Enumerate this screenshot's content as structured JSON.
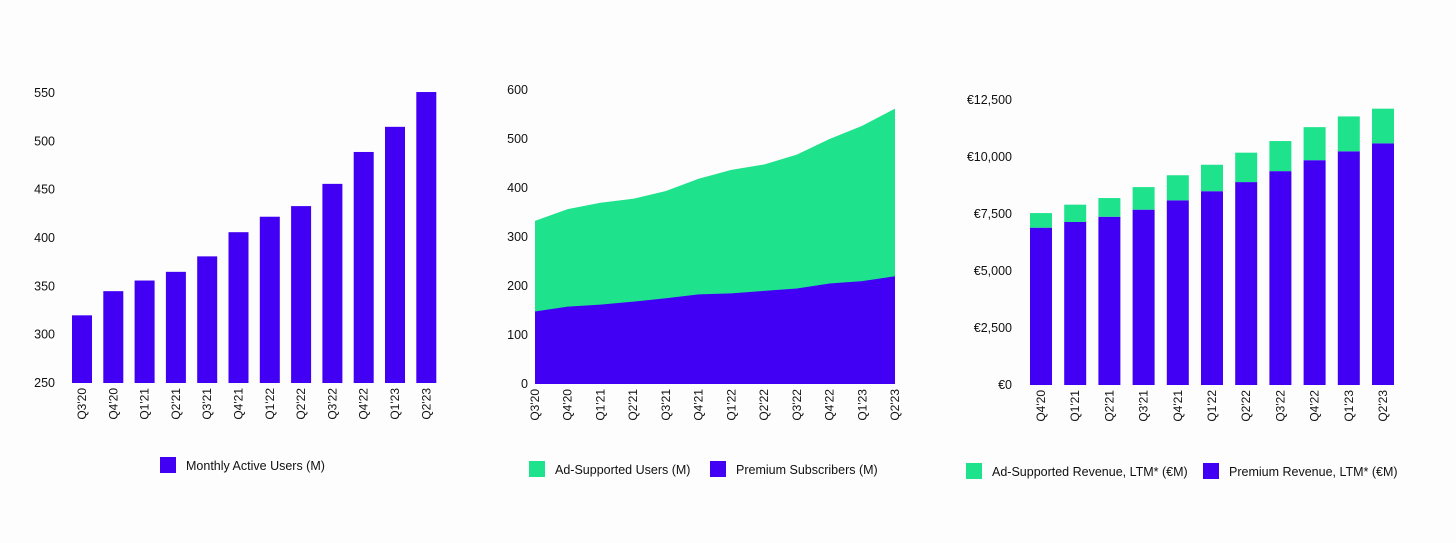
{
  "colors": {
    "purple": "#4100f4",
    "green": "#1ee38c",
    "background": "#fdfdfd",
    "text": "#111111"
  },
  "chart_data": [
    {
      "type": "bar",
      "categories": [
        "Q3'20",
        "Q4'20",
        "Q1'21",
        "Q2'21",
        "Q3'21",
        "Q4'21",
        "Q1'22",
        "Q2'22",
        "Q3'22",
        "Q4'22",
        "Q1'23",
        "Q2'23"
      ],
      "series": [
        {
          "name": "Monthly Active Users (M)",
          "color": "#4100f4",
          "values": [
            320,
            345,
            356,
            365,
            381,
            406,
            422,
            433,
            456,
            489,
            515,
            551
          ]
        }
      ],
      "yticks": [
        "250",
        "300",
        "350",
        "400",
        "450",
        "500",
        "550"
      ],
      "ylim": [
        250,
        550
      ],
      "legend_position": "bottom",
      "grid": false
    },
    {
      "type": "area",
      "stacked": true,
      "categories": [
        "Q3'20",
        "Q4'20",
        "Q1'21",
        "Q2'21",
        "Q3'21",
        "Q4'21",
        "Q1'22",
        "Q2'22",
        "Q3'22",
        "Q4'22",
        "Q1'23",
        "Q2'23"
      ],
      "series": [
        {
          "name": "Ad-Supported Users (M)",
          "color": "#1ee38c",
          "values": [
            185,
            199,
            208,
            210,
            219,
            236,
            252,
            258,
            273,
            295,
            317,
            342
          ]
        },
        {
          "name": "Premium Subscribers (M)",
          "color": "#4100f4",
          "values": [
            148,
            158,
            162,
            168,
            175,
            183,
            185,
            190,
            195,
            205,
            210,
            220
          ]
        }
      ],
      "yticks": [
        "0",
        "100",
        "200",
        "300",
        "400",
        "500",
        "600"
      ],
      "ylim": [
        0,
        600
      ],
      "legend_position": "bottom",
      "grid": false
    },
    {
      "type": "bar",
      "stacked": true,
      "categories": [
        "Q4'20",
        "Q1'21",
        "Q2'21",
        "Q3'21",
        "Q4'21",
        "Q1'22",
        "Q2'22",
        "Q3'22",
        "Q4'22",
        "Q1'23",
        "Q2'23"
      ],
      "series": [
        {
          "name": "Ad-Supported Revenue, LTM* (€M)",
          "color": "#1ee38c",
          "values": [
            640,
            760,
            820,
            990,
            1100,
            1160,
            1290,
            1320,
            1450,
            1530,
            1520
          ]
        },
        {
          "name": "Premium Revenue, LTM* (€M)",
          "color": "#4100f4",
          "values": [
            6900,
            7150,
            7380,
            7690,
            8100,
            8500,
            8900,
            9380,
            9860,
            10250,
            10600
          ]
        }
      ],
      "yticks": [
        "€0",
        "€2,500",
        "€5,000",
        "€7,500",
        "€10,000",
        "€12,500"
      ],
      "ylim": [
        0,
        12500
      ],
      "legend_position": "bottom",
      "grid": false
    }
  ]
}
